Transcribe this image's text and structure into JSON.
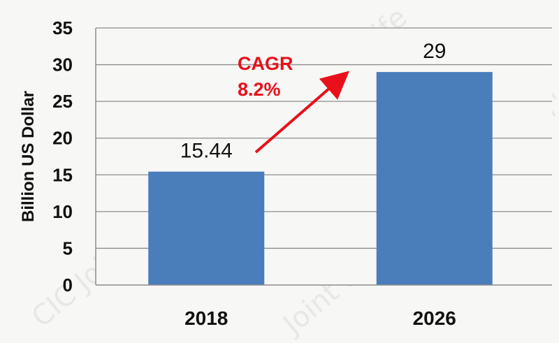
{
  "chart_data": {
    "type": "bar",
    "categories": [
      "2018",
      "2026"
    ],
    "values": [
      15.44,
      29
    ],
    "data_labels": [
      "15.44",
      "29"
    ],
    "ylabel": "Billion US Dollar",
    "xlabel": "",
    "ylim": [
      0,
      35
    ],
    "yticks": [
      0,
      5,
      10,
      15,
      20,
      25,
      30,
      35
    ],
    "grid": true,
    "legend": "none",
    "bar_color": "#4a7ebb",
    "annotation": {
      "label": "CAGR",
      "value": "8.2%",
      "color": "#e8101b"
    }
  }
}
